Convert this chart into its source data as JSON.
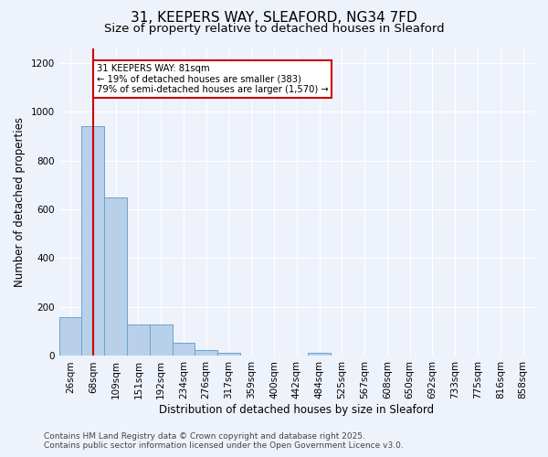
{
  "title1": "31, KEEPERS WAY, SLEAFORD, NG34 7FD",
  "title2": "Size of property relative to detached houses in Sleaford",
  "xlabel": "Distribution of detached houses by size in Sleaford",
  "ylabel": "Number of detached properties",
  "bar_labels": [
    "26sqm",
    "68sqm",
    "109sqm",
    "151sqm",
    "192sqm",
    "234sqm",
    "276sqm",
    "317sqm",
    "359sqm",
    "400sqm",
    "442sqm",
    "484sqm",
    "525sqm",
    "567sqm",
    "608sqm",
    "650sqm",
    "692sqm",
    "733sqm",
    "775sqm",
    "816sqm",
    "858sqm"
  ],
  "bar_values": [
    160,
    940,
    650,
    130,
    130,
    55,
    25,
    12,
    0,
    0,
    0,
    12,
    0,
    0,
    0,
    0,
    0,
    0,
    0,
    0,
    0
  ],
  "bar_color": "#b8d0ea",
  "bar_edge_color": "#6ba3cb",
  "vline_x": 1.0,
  "vline_color": "#cc0000",
  "annotation_text": "31 KEEPERS WAY: 81sqm\n← 19% of detached houses are smaller (383)\n79% of semi-detached houses are larger (1,570) →",
  "annotation_box_color": "#ffffff",
  "annotation_box_edge": "#cc0000",
  "ylim": [
    0,
    1260
  ],
  "yticks": [
    0,
    200,
    400,
    600,
    800,
    1000,
    1200
  ],
  "bg_color": "#eef2fb",
  "footer1": "Contains HM Land Registry data © Crown copyright and database right 2025.",
  "footer2": "Contains public sector information licensed under the Open Government Licence v3.0.",
  "title1_fontsize": 11,
  "title2_fontsize": 9.5,
  "tick_fontsize": 7.5,
  "axis_label_fontsize": 8.5,
  "footer_fontsize": 6.5
}
